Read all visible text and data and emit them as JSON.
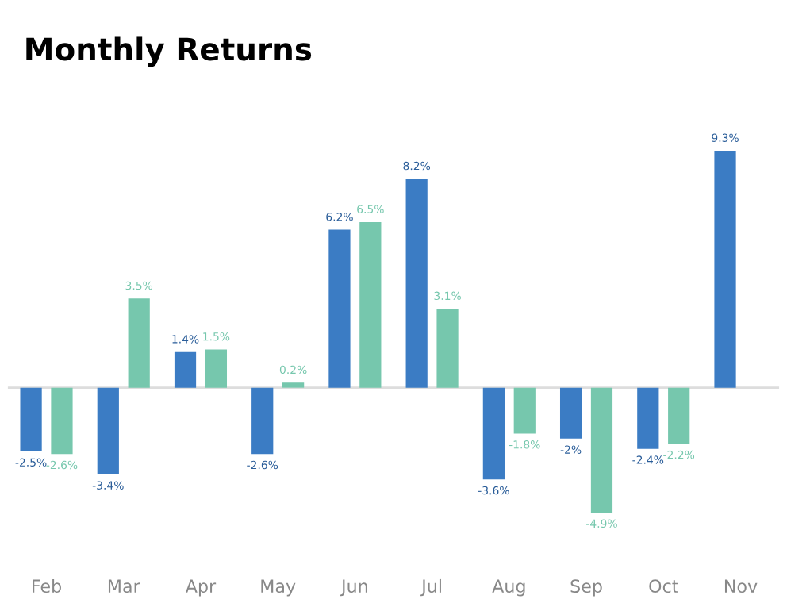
{
  "chart_data": {
    "type": "bar",
    "title": "Monthly Returns",
    "categories": [
      "Feb",
      "Mar",
      "Apr",
      "May",
      "Jun",
      "Jul",
      "Aug",
      "Sep",
      "Oct",
      "Nov"
    ],
    "series": [
      {
        "color": "#3b7cc4",
        "values": [
          -2.5,
          -3.4,
          1.4,
          -2.6,
          6.2,
          8.2,
          -3.6,
          -2,
          -2.4,
          9.3
        ],
        "value_labels": [
          "-2.5%",
          "-3.4%",
          "1.4%",
          "-2.6%",
          "6.2%",
          "8.2%",
          "-3.6%",
          "-2%",
          "-2.4%",
          "9.3%"
        ]
      },
      {
        "color": "#76c7ad",
        "values": [
          -2.6,
          3.5,
          1.5,
          0.2,
          6.5,
          3.1,
          -1.8,
          -4.9,
          -2.2,
          null
        ],
        "value_labels": [
          "-2.6%",
          "3.5%",
          "1.5%",
          "0.2%",
          "6.5%",
          "3.1%",
          "-1.8%",
          "-4.9%",
          "-2.2%",
          null
        ]
      }
    ],
    "ref_lines": [
      {
        "axis": "y",
        "value": 0,
        "color": "#dddddd"
      }
    ],
    "tick_labels": "x",
    "grid": false,
    "legend": false
  }
}
